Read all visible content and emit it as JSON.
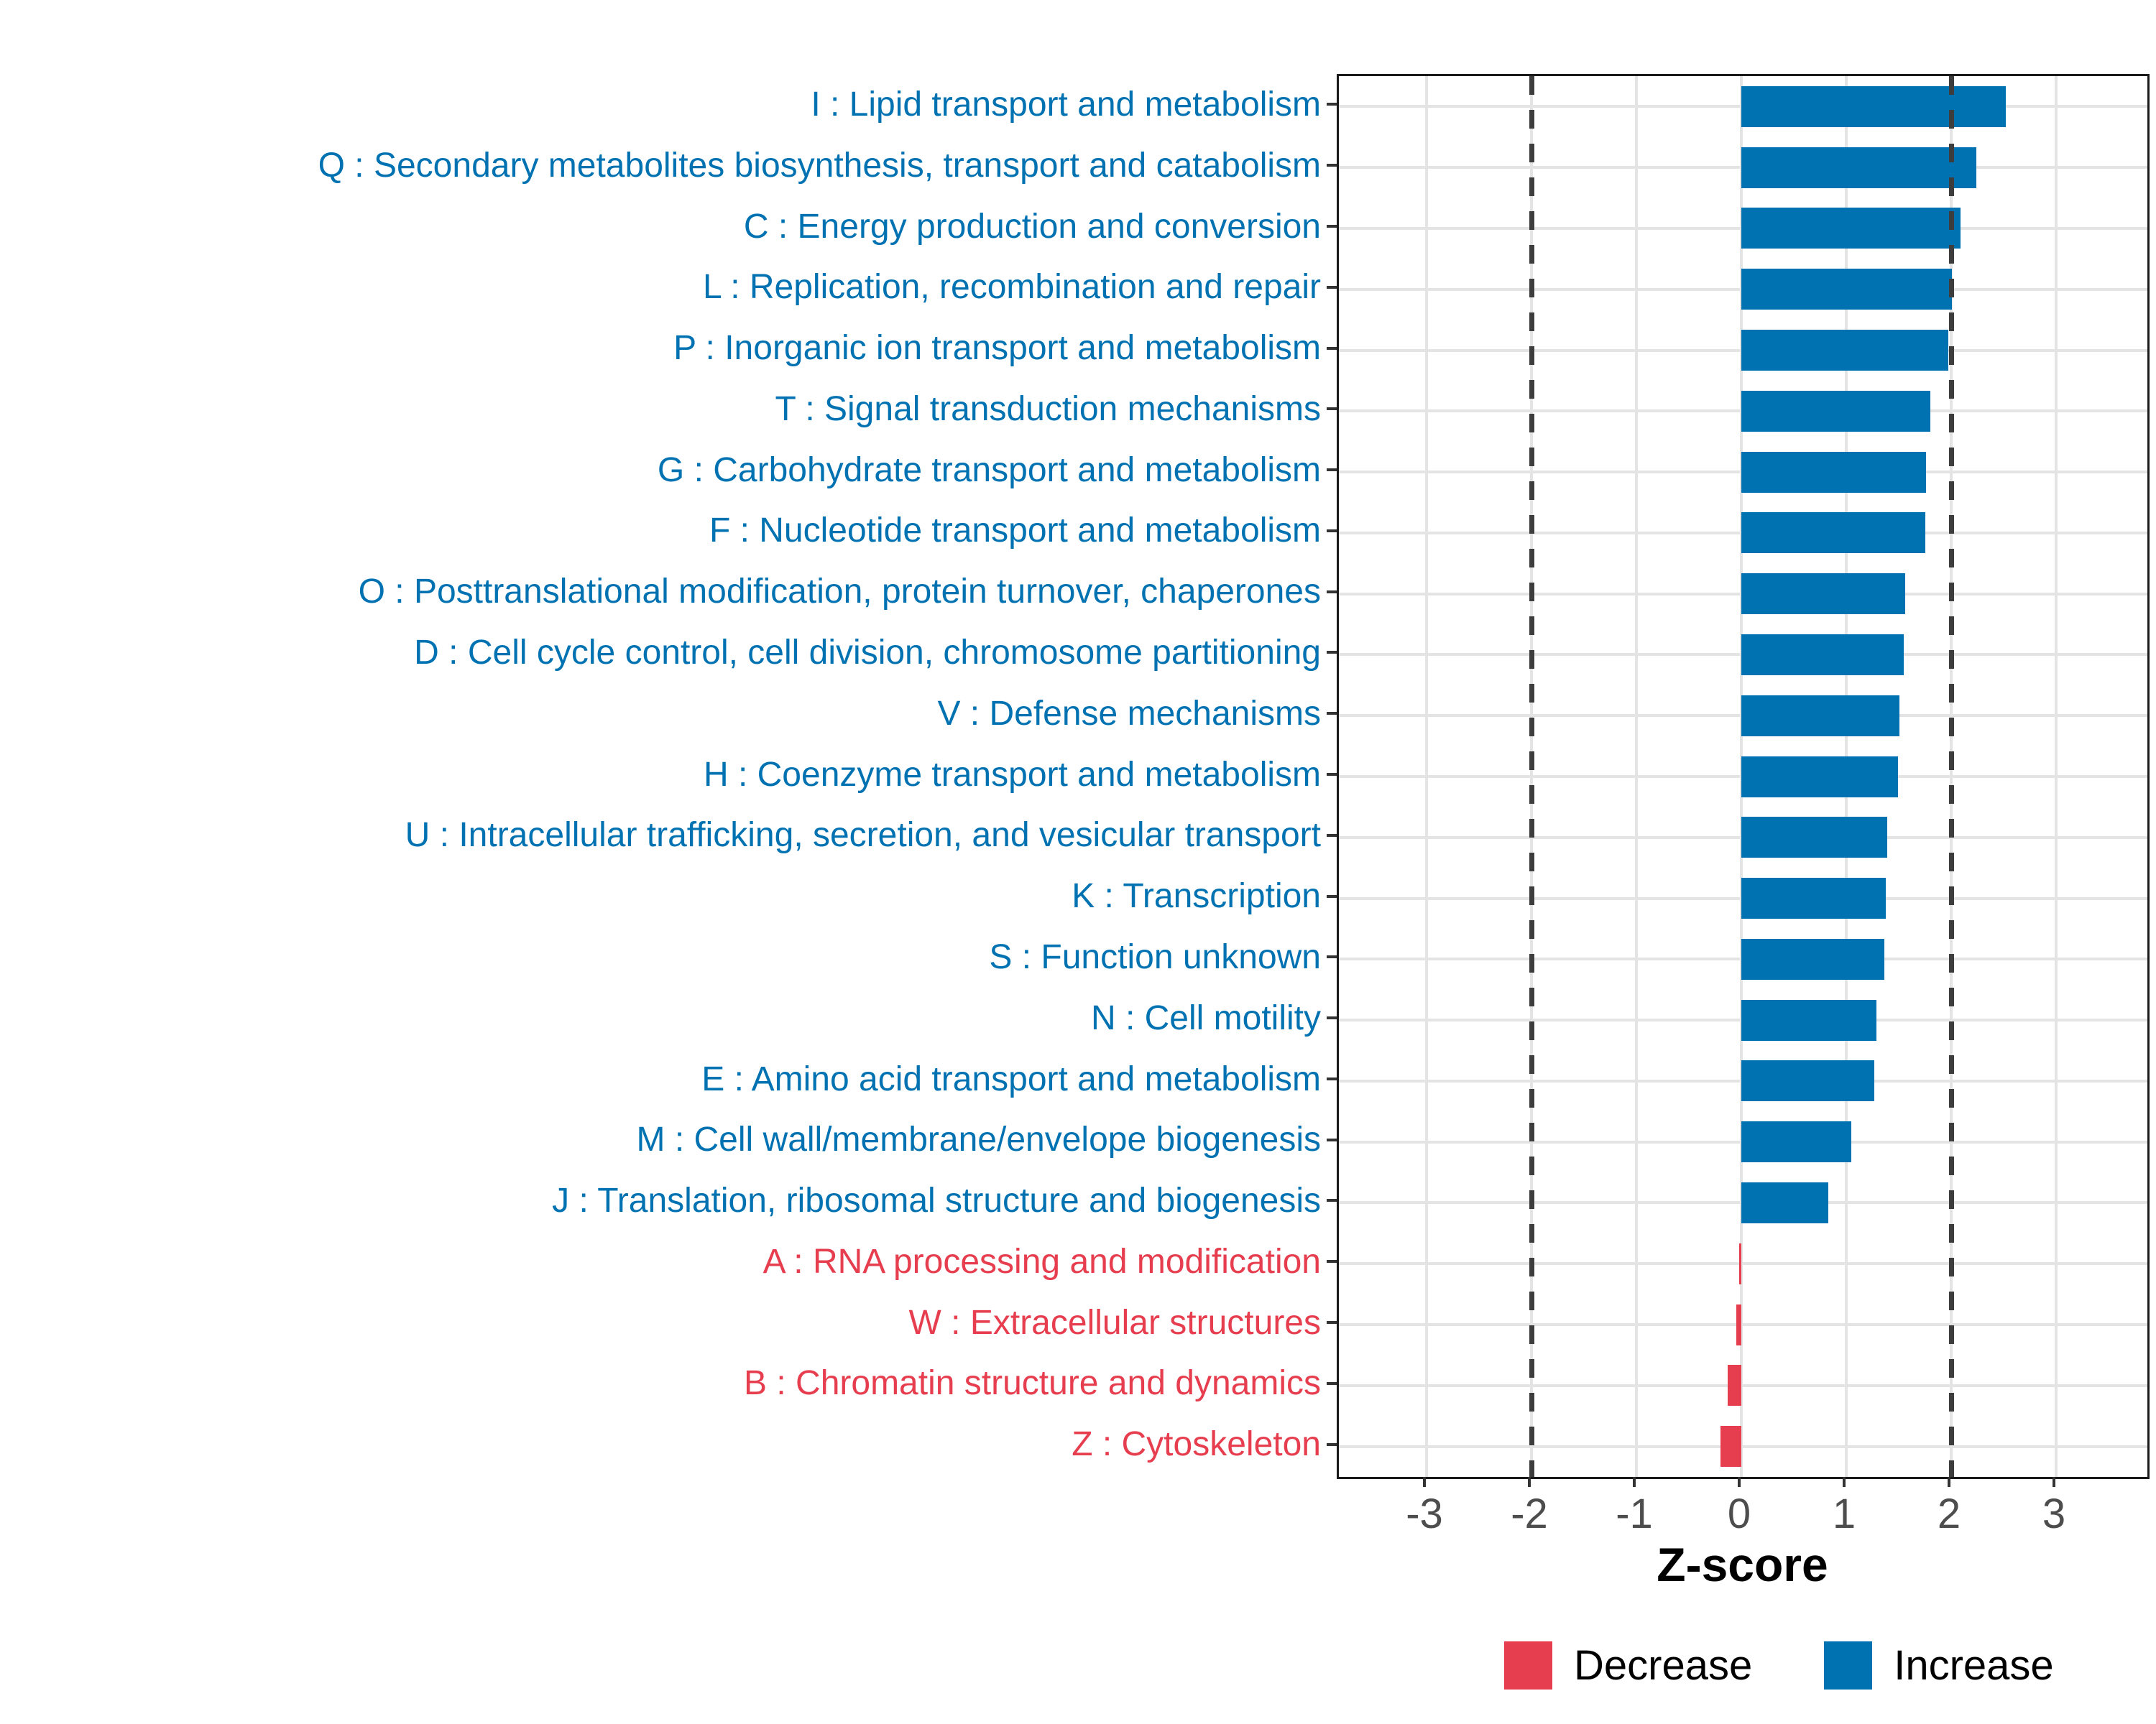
{
  "chart_data": {
    "type": "bar",
    "orientation": "horizontal",
    "title": "",
    "xlabel": "Z-score",
    "ylabel": "",
    "x_range": [
      -3.84,
      3.87
    ],
    "x_ticks": [
      -3,
      -2,
      -1,
      0,
      1,
      2,
      3
    ],
    "reference_lines": [
      -2,
      2
    ],
    "grid": true,
    "legend_position": "bottom",
    "legend": [
      {
        "label": "Decrease",
        "color": "#E63E4F"
      },
      {
        "label": "Increase",
        "color": "#0072B2"
      }
    ],
    "categories": [
      {
        "label": "I : Lipid transport and metabolism",
        "value": 2.52,
        "group": "Increase"
      },
      {
        "label": "Q : Secondary metabolites biosynthesis, transport and catabolism",
        "value": 2.24,
        "group": "Increase"
      },
      {
        "label": "C : Energy production and conversion",
        "value": 2.09,
        "group": "Increase"
      },
      {
        "label": "L : Replication, recombination and repair",
        "value": 2.01,
        "group": "Increase"
      },
      {
        "label": "P : Inorganic ion transport and metabolism",
        "value": 1.97,
        "group": "Increase"
      },
      {
        "label": "T : Signal transduction mechanisms",
        "value": 1.8,
        "group": "Increase"
      },
      {
        "label": "G : Carbohydrate transport and metabolism",
        "value": 1.76,
        "group": "Increase"
      },
      {
        "label": "F : Nucleotide transport and metabolism",
        "value": 1.75,
        "group": "Increase"
      },
      {
        "label": "O : Posttranslational modification, protein turnover, chaperones",
        "value": 1.56,
        "group": "Increase"
      },
      {
        "label": "D : Cell cycle control, cell division, chromosome partitioning",
        "value": 1.55,
        "group": "Increase"
      },
      {
        "label": "V : Defense mechanisms",
        "value": 1.51,
        "group": "Increase"
      },
      {
        "label": "H : Coenzyme transport and metabolism",
        "value": 1.49,
        "group": "Increase"
      },
      {
        "label": "U : Intracellular trafficking, secretion, and vesicular transport",
        "value": 1.39,
        "group": "Increase"
      },
      {
        "label": "K : Transcription",
        "value": 1.38,
        "group": "Increase"
      },
      {
        "label": "S : Function unknown",
        "value": 1.36,
        "group": "Increase"
      },
      {
        "label": "N : Cell motility",
        "value": 1.29,
        "group": "Increase"
      },
      {
        "label": "E : Amino acid transport and metabolism",
        "value": 1.27,
        "group": "Increase"
      },
      {
        "label": "M : Cell wall/membrane/envelope biogenesis",
        "value": 1.05,
        "group": "Increase"
      },
      {
        "label": "J : Translation, ribosomal structure and biogenesis",
        "value": 0.83,
        "group": "Increase"
      },
      {
        "label": "A : RNA processing and modification",
        "value": -0.02,
        "group": "Decrease"
      },
      {
        "label": "W : Extracellular structures",
        "value": -0.05,
        "group": "Decrease"
      },
      {
        "label": "B : Chromatin structure and dynamics",
        "value": -0.13,
        "group": "Decrease"
      },
      {
        "label": "Z : Cytoskeleton",
        "value": -0.2,
        "group": "Decrease"
      }
    ]
  },
  "colors": {
    "increase": "#0072B2",
    "decrease": "#E63E4F",
    "grid": "#E4E4E4",
    "panel_border": "#1A1A1A",
    "axis_tick": "#333333",
    "ref_line": "#3D3D3D",
    "x_tick_label": "#4D4D4D",
    "axis_title": "#000000",
    "background": "#FFFFFF"
  }
}
